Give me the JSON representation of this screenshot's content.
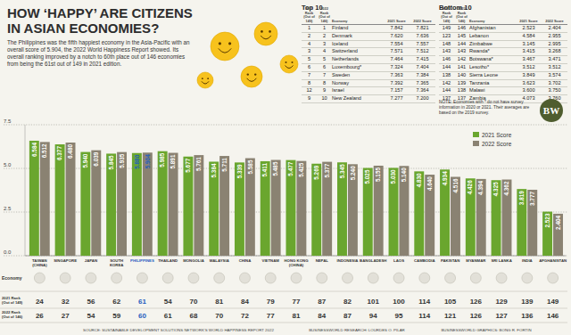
{
  "header": {
    "title": "HOW ‘HAPPY’ ARE CITIZENS IN ASIAN ECONOMIES?",
    "subtitle": "The Philippines was the fifth happiest economy in the Asia-Pacific with an overall score of 5.904, the 2022 World Happiness Report showed. Its overall ranking improved by a notch to 60th place out of 146 economies from being the 61st out of 149 in 2021 edition."
  },
  "chart_data": {
    "type": "bar",
    "categories": [
      "TAIWAN (CHINA)",
      "SINGAPORE",
      "JAPAN",
      "SOUTH KOREA",
      "PHILIPPINES",
      "THAILAND",
      "MONGOLIA",
      "MALAYSIA",
      "CHINA",
      "VIETNAM",
      "HONG KONG (CHINA)",
      "NEPAL",
      "INDONESIA",
      "BANGLADESH",
      "LAOS",
      "CAMBODIA",
      "PAKISTAN",
      "MYANMAR",
      "SRI LANKA",
      "INDIA",
      "AFGHANISTAN"
    ],
    "series": [
      {
        "name": "2021 Score",
        "color": "#6aa62e",
        "values": [
          6.584,
          6.377,
          5.94,
          5.845,
          5.88,
          5.985,
          5.677,
          5.384,
          5.339,
          5.411,
          5.477,
          5.269,
          5.345,
          5.025,
          5.03,
          4.83,
          4.934,
          4.426,
          4.325,
          3.819,
          2.523
        ],
        "value_labels": [
          "6.584",
          "6.377",
          "5.940",
          "5.845",
          "5.880",
          "5.985",
          "5.677",
          "5.384",
          "5.339",
          "5.411",
          "5.477",
          "5.269",
          "5.345",
          "5.025",
          "5.030",
          "4.830",
          "4.934",
          "4.426",
          "4.325",
          "3.819",
          "2.523"
        ]
      },
      {
        "name": "2022 Score",
        "color": "#8a8272",
        "values": [
          6.512,
          6.48,
          6.039,
          5.935,
          5.904,
          5.891,
          5.761,
          5.711,
          5.585,
          5.485,
          5.425,
          5.377,
          5.24,
          5.155,
          5.14,
          4.64,
          4.516,
          4.394,
          4.362,
          3.777,
          2.404
        ],
        "value_labels": [
          "6.512",
          "6.480",
          "6.039",
          "5.935",
          "5.904",
          "5.891",
          "5.761",
          "5.711",
          "5.585",
          "5.485",
          "5.425",
          "5.377",
          "5.240",
          "5.155",
          "5.140",
          "4.640",
          "4.516",
          "4.394",
          "4.362",
          "3.777",
          "2.404"
        ]
      }
    ],
    "ylim": [
      0,
      7.5
    ],
    "yticks": [
      {
        "value": 0,
        "label": "0.0"
      },
      2.5,
      {
        "value": 5,
        "label": "5.0"
      },
      7.5
    ],
    "grid": true,
    "data_labels": true,
    "legend": "upper right"
  },
  "ranks": {
    "row_labels": [
      "Economy",
      "2021 Rank (Out of 149)",
      "2022 Rank (Out of 146)"
    ],
    "rank_2021": [
      24,
      32,
      56,
      62,
      61,
      54,
      70,
      81,
      84,
      79,
      77,
      87,
      82,
      101,
      100,
      114,
      105,
      126,
      129,
      139,
      149
    ],
    "rank_2022": [
      26,
      27,
      54,
      59,
      60,
      61,
      68,
      70,
      72,
      77,
      81,
      84,
      87,
      94,
      95,
      114,
      121,
      126,
      127,
      136,
      146
    ]
  },
  "top10": {
    "title": "Top 10",
    "columns": [
      "2021 Rank (Out of 149)",
      "2022 Rank (Out of 146)",
      "Economy",
      "2021 Score",
      "2022 Score"
    ],
    "rows": [
      [
        "1",
        "1",
        "Finland",
        "7.842",
        "7.821"
      ],
      [
        "2",
        "2",
        "Denmark",
        "7.620",
        "7.636"
      ],
      [
        "4",
        "3",
        "Iceland",
        "7.554",
        "7.557"
      ],
      [
        "3",
        "4",
        "Switzerland",
        "7.571",
        "7.512"
      ],
      [
        "5",
        "5",
        "Netherlands",
        "7.464",
        "7.415"
      ],
      [
        "6",
        "6",
        "Luxembourg*",
        "7.324",
        "7.404"
      ],
      [
        "7",
        "7",
        "Sweden",
        "7.363",
        "7.384"
      ],
      [
        "8",
        "8",
        "Norway",
        "7.392",
        "7.365"
      ],
      [
        "12",
        "9",
        "Israel",
        "7.157",
        "7.364"
      ],
      [
        "9",
        "10",
        "New Zealand",
        "7.277",
        "7.200"
      ]
    ]
  },
  "bottom10": {
    "title": "Bottom 10",
    "columns": [
      "2021 Rank (Out of 149)",
      "2022 Rank (Out of 146)",
      "Economy",
      "2021 Score",
      "2022 Score"
    ],
    "rows": [
      [
        "149",
        "146",
        "Afghanistan",
        "2.523",
        "2.404"
      ],
      [
        "123",
        "145",
        "Lebanon",
        "4.584",
        "2.955"
      ],
      [
        "148",
        "144",
        "Zimbabwe",
        "3.145",
        "2.995"
      ],
      [
        "143",
        "143",
        "Rwanda*",
        "3.415",
        "3.268"
      ],
      [
        "146",
        "142",
        "Botswana*",
        "3.467",
        "3.471"
      ],
      [
        "144",
        "141",
        "Lesotho*",
        "3.512",
        "3.512"
      ],
      [
        "138",
        "140",
        "Sierra Leone",
        "3.849",
        "3.574"
      ],
      [
        "142",
        "139",
        "Tanzania",
        "3.623",
        "3.702"
      ],
      [
        "144",
        "138",
        "Malawi",
        "3.600",
        "3.750"
      ],
      [
        "137",
        "137",
        "Zambia",
        "4.073",
        "3.760"
      ]
    ]
  },
  "note": "NOTE: Economies with * do not have survey information in 2020 or 2021. Their averages are based on the 2019 survey.",
  "logo": "BW",
  "footer": [
    "SOURCE: SUSTAINABLE DEVELOPMENT SOLUTIONS NETWORK'S WORLD HAPPINESS REPORT 2022",
    "BUSINESSWORLD RESEARCH: LOURDES O. PILAR",
    "BUSINESSWORLD GRAPHICS: BONG R. FORTIN"
  ]
}
